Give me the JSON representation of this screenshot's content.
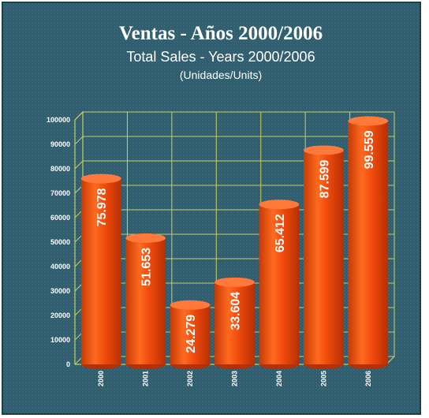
{
  "chart_data": {
    "type": "bar",
    "title": "Ventas - Años 2000/2006",
    "subtitle": "Total Sales - Years 2000/2006",
    "unit_label": "(Unidades/Units)",
    "categories": [
      "2000",
      "2001",
      "2002",
      "2003",
      "2004",
      "2005",
      "2006"
    ],
    "values": [
      75978,
      51653,
      24279,
      33604,
      65412,
      87599,
      99559
    ],
    "value_labels": [
      "75.978",
      "51.653",
      "24.279",
      "33.604",
      "65.412",
      "87.599",
      "99.559"
    ],
    "color": "#f04a0c",
    "ylim": [
      0,
      100000
    ],
    "yticks": [
      0,
      10000,
      20000,
      30000,
      40000,
      50000,
      60000,
      70000,
      80000,
      90000,
      100000
    ],
    "grid": true
  }
}
